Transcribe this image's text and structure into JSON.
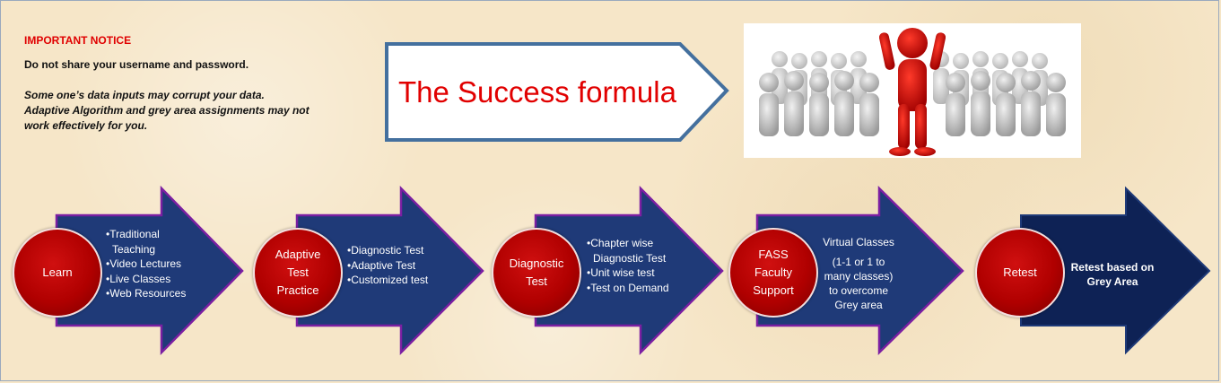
{
  "notice": {
    "title": "IMPORTANT NOTICE",
    "line1": "Do not share your username and password.",
    "line2": "Some one’s data inputs may corrupt your data.",
    "line3": "Adaptive Algorithm and grey area assignments may not",
    "line4": "work effectively for you."
  },
  "banner": {
    "title": "The Success formula"
  },
  "image": {
    "description_icon": "leader-figure-icon"
  },
  "steps": [
    {
      "label_lines": [
        "Learn"
      ],
      "items": [
        "Traditional Teaching",
        "Video Lectures",
        "Live Classes",
        "Web Resources"
      ]
    },
    {
      "label_lines": [
        "Adaptive",
        "Test",
        "Practice"
      ],
      "items": [
        "Diagnostic Test",
        "Adaptive Test",
        "Customized test"
      ]
    },
    {
      "label_lines": [
        "Diagnostic",
        "Test"
      ],
      "items": [
        "Chapter wise Diagnostic Test",
        "Unit wise test",
        "Test on Demand"
      ]
    },
    {
      "label_lines": [
        "FASS",
        "Faculty",
        "Support"
      ],
      "text_lines": [
        "Virtual Classes",
        "(1-1 or 1 to",
        "many classes)",
        "to overcome",
        "Grey area"
      ]
    },
    {
      "label_lines": [
        "Retest"
      ],
      "text_lines": [
        "Retest based on",
        "Grey Area"
      ]
    }
  ],
  "colors": {
    "arrow_fill": "#1f3a78",
    "arrow_border": "#7b1fa2",
    "circle": "#b00000",
    "title_red": "#e10000",
    "notice_red": "#e00000"
  }
}
